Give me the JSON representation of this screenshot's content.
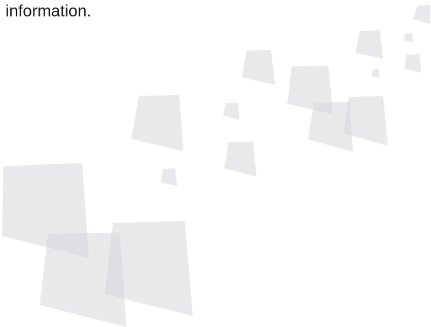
{
  "text": "information."
}
